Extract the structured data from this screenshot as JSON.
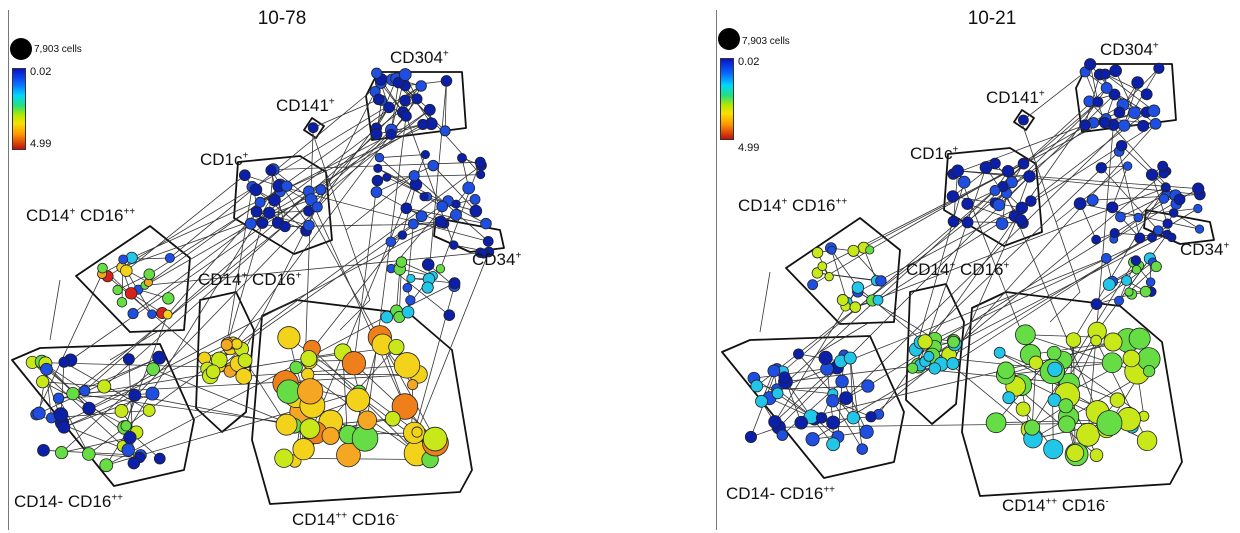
{
  "panels": [
    {
      "title": "10-78",
      "legend": {
        "size_label": "7,903 cells",
        "scale_max": "0.02",
        "scale_min": "4.99"
      },
      "clusters": [
        {
          "name": "cd304",
          "base": "CD304",
          "sup": "+"
        },
        {
          "name": "cd141",
          "base": "CD141",
          "sup": "+"
        },
        {
          "name": "cd1c",
          "base": "CD1c",
          "sup": "+"
        },
        {
          "name": "cd14-cd16pp-upper",
          "base": "CD14",
          "sup": "+",
          "base2": " CD16",
          "sup2": "++"
        },
        {
          "name": "cd14-cd16p",
          "base": "CD14",
          "sup": "+",
          "base2": " CD16",
          "sup2": "+"
        },
        {
          "name": "cd34",
          "base": "CD34",
          "sup": "+"
        },
        {
          "name": "cd14neg-cd16pp",
          "base": "CD14- CD16",
          "sup": "++"
        },
        {
          "name": "cd14pp-cd16neg",
          "base": "CD14",
          "sup": "++",
          "base2": " CD16",
          "sup2": "-"
        }
      ]
    },
    {
      "title": "10-21",
      "legend": {
        "size_label": "7,903 cells",
        "scale_max": "0.02",
        "scale_min": "4.99"
      },
      "clusters": [
        {
          "name": "cd304",
          "base": "CD304",
          "sup": "+"
        },
        {
          "name": "cd141",
          "base": "CD141",
          "sup": "+"
        },
        {
          "name": "cd1c",
          "base": "CD1c",
          "sup": "+"
        },
        {
          "name": "cd14-cd16pp-upper",
          "base": "CD14",
          "sup": "+",
          "base2": " CD16",
          "sup2": "++"
        },
        {
          "name": "cd14-cd16p",
          "base": "CD14",
          "sup": "+",
          "base2": " CD16",
          "sup2": "+"
        },
        {
          "name": "cd34",
          "base": "CD34",
          "sup": "+"
        },
        {
          "name": "cd14neg-cd16pp",
          "base": "CD14- CD16",
          "sup": "++"
        },
        {
          "name": "cd14pp-cd16neg",
          "base": "CD14",
          "sup": "++",
          "base2": " CD16",
          "sup2": "-"
        }
      ]
    }
  ],
  "colors": {
    "dark_blue": "#0b1fa8",
    "blue": "#1f4fe0",
    "cyan": "#22c6e8",
    "green": "#66dd44",
    "yellow_green": "#c8e81a",
    "yellow": "#f2d21a",
    "orange": "#f5a623",
    "dark_orange": "#ee7f1a",
    "red": "#d9221a",
    "outline": "#111111"
  }
}
